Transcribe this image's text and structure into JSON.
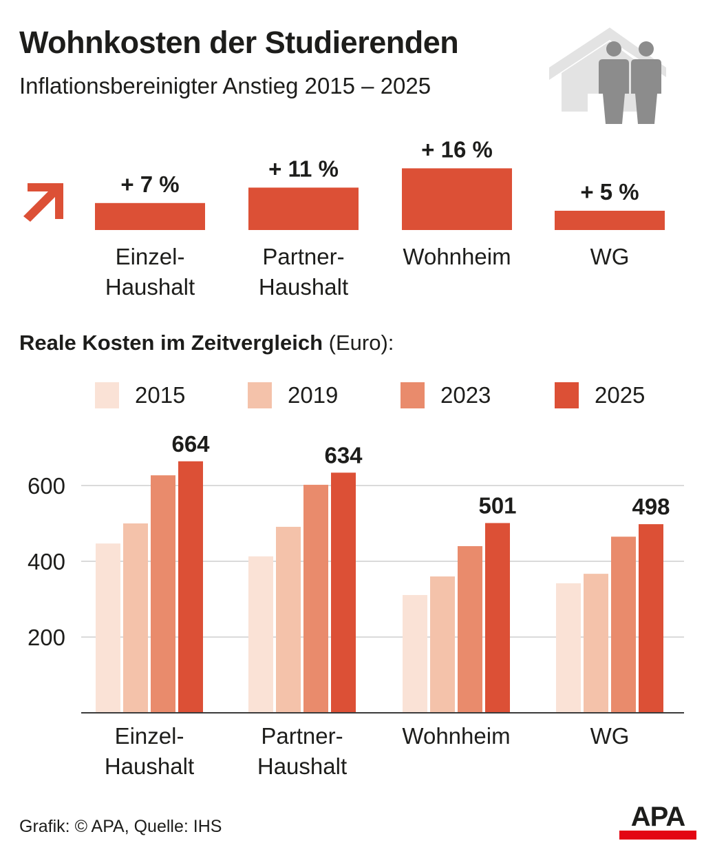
{
  "header": {
    "title": "Wohnkosten der Studierenden",
    "subtitle": "Inflationsbereinigter Anstieg 2015 – 2025",
    "icon": "house-with-people-icon"
  },
  "increase_section": {
    "icon": "arrow-up-right-icon",
    "color": "#dc5036"
  },
  "section": {
    "title_bold": "Reale Kosten im Zeitvergleich",
    "title_unit": "(Euro):"
  },
  "footer": {
    "source": "Grafik: © APA, Quelle: IHS",
    "logo_text": "APA",
    "logo_bar_color": "#e30613"
  },
  "chart_data": [
    {
      "type": "bar",
      "title": "Inflationsbereinigter Anstieg 2015 – 2025",
      "categories": [
        "Einzel-\nHaushalt",
        "Partner-\nHaushalt",
        "Wohnheim",
        "WG"
      ],
      "values": [
        7,
        11,
        16,
        5
      ],
      "value_labels": [
        "+ 7 %",
        "+ 11 %",
        "+ 16 %",
        "+ 5 %"
      ],
      "unit": "%",
      "color": "#dc5036",
      "axis": "none"
    },
    {
      "type": "bar",
      "title": "Reale Kosten im Zeitvergleich (Euro):",
      "xlabel": "",
      "ylabel": "Euro",
      "ylim": [
        0,
        700
      ],
      "yticks": [
        200,
        400,
        600
      ],
      "grid": true,
      "legend_position": "top-center",
      "categories": [
        "Einzel-\nHaushalt",
        "Partner-\nHaushalt",
        "Wohnheim",
        "WG"
      ],
      "series": [
        {
          "name": "2015",
          "color": "#fae2d6",
          "values": [
            447,
            413,
            311,
            342
          ]
        },
        {
          "name": "2019",
          "color": "#f4c2aa",
          "values": [
            500,
            491,
            360,
            367
          ]
        },
        {
          "name": "2023",
          "color": "#e98b6c",
          "values": [
            627,
            602,
            440,
            465
          ]
        },
        {
          "name": "2025",
          "color": "#dc5036",
          "values": [
            664,
            634,
            501,
            498
          ]
        }
      ],
      "data_labels": {
        "series": "2025",
        "labels": [
          "664",
          "634",
          "501",
          "498"
        ]
      }
    }
  ]
}
